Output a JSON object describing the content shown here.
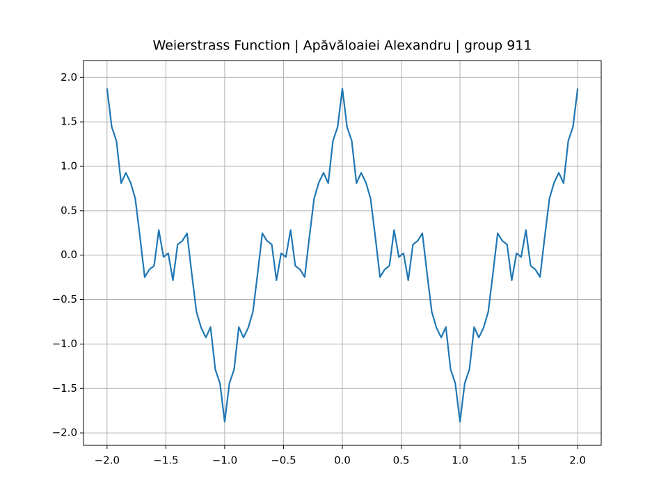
{
  "chart_data": {
    "type": "line",
    "title": "Weierstrass Function | Apăvăloaiei Alexandru | group 911",
    "color": "#1f77b4",
    "grid": true,
    "xlim": [
      -2.2,
      2.2
    ],
    "ylim": [
      -2.14,
      2.19
    ],
    "xticks": [
      {
        "value": -2,
        "label": "−2.0"
      },
      {
        "value": -1.5,
        "label": "−1.5"
      },
      {
        "value": -1,
        "label": "−1.0"
      },
      {
        "value": -0.5,
        "label": "−0.5"
      },
      {
        "value": 0,
        "label": "0.0"
      },
      0.5,
      {
        "value": 1,
        "label": "1.0"
      },
      1.5,
      {
        "value": 2,
        "label": "2.0"
      }
    ],
    "yticks": [
      {
        "value": -2,
        "label": "−2.0"
      },
      {
        "value": -1.5,
        "label": "−1.5"
      },
      {
        "value": -1,
        "label": "−1.0"
      },
      {
        "value": -0.5,
        "label": "−0.5"
      },
      {
        "value": 0,
        "label": "0.0"
      },
      0.5,
      {
        "value": 1,
        "label": "1.0"
      },
      1.5,
      {
        "value": 2,
        "label": "2.0"
      }
    ],
    "x": [
      -2,
      -1.96,
      -1.92,
      -1.88,
      -1.84,
      -1.8,
      -1.76,
      -1.72,
      -1.68,
      -1.64,
      -1.6,
      -1.56,
      -1.52,
      -1.48,
      -1.44,
      -1.4,
      -1.36,
      -1.32,
      -1.28,
      -1.24,
      -1.2,
      -1.16,
      -1.12,
      -1.08,
      -1.04,
      -1,
      -0.96,
      -0.92,
      -0.88,
      -0.84,
      -0.8,
      -0.76,
      -0.72,
      -0.68,
      -0.64,
      -0.6,
      -0.56,
      -0.52,
      -0.48,
      -0.44,
      -0.4,
      -0.36,
      -0.32,
      -0.28,
      -0.24,
      -0.2,
      -0.16,
      -0.12,
      -0.08,
      -0.04,
      0,
      0.04,
      0.08,
      0.12,
      0.16,
      0.2,
      0.24,
      0.28,
      0.32,
      0.36,
      0.4,
      0.44,
      0.48,
      0.52,
      0.56,
      0.6,
      0.64,
      0.68,
      0.72,
      0.76,
      0.8,
      0.84,
      0.88,
      0.92,
      0.96,
      1,
      1.04,
      1.08,
      1.12,
      1.16,
      1.2,
      1.24,
      1.28,
      1.32,
      1.36,
      1.4,
      1.44,
      1.48,
      1.52,
      1.56,
      1.6,
      1.64,
      1.68,
      1.72,
      1.76,
      1.8,
      1.84,
      1.88,
      1.92,
      1.96,
      2
    ],
    "values": [
      1.875,
      1.443,
      1.285,
      0.81,
      0.927,
      0.817,
      0.637,
      0.206,
      -0.246,
      -0.161,
      -0.12,
      0.283,
      -0.021,
      0.021,
      -0.283,
      0.12,
      0.161,
      0.246,
      -0.206,
      -0.637,
      -0.817,
      -0.927,
      -0.81,
      -1.285,
      -1.443,
      -1.875,
      -1.443,
      -1.285,
      -0.81,
      -0.927,
      -0.817,
      -0.637,
      -0.206,
      0.246,
      0.161,
      0.12,
      -0.283,
      0.021,
      -0.021,
      0.283,
      -0.12,
      -0.161,
      -0.246,
      0.206,
      0.637,
      0.817,
      0.927,
      0.81,
      1.285,
      1.443,
      1.875,
      1.443,
      1.285,
      0.81,
      0.927,
      0.817,
      0.637,
      0.206,
      -0.246,
      -0.161,
      -0.12,
      0.283,
      -0.021,
      0.021,
      -0.283,
      0.12,
      0.161,
      0.246,
      -0.206,
      -0.637,
      -0.817,
      -0.927,
      -0.81,
      -1.285,
      -1.443,
      -1.875,
      -1.443,
      -1.285,
      -0.81,
      -0.927,
      -0.817,
      -0.637,
      -0.206,
      0.246,
      0.161,
      0.12,
      -0.283,
      0.021,
      -0.021,
      0.283,
      -0.12,
      -0.161,
      -0.246,
      0.206,
      0.637,
      0.817,
      0.927,
      0.81,
      1.285,
      1.443,
      1.875
    ]
  }
}
